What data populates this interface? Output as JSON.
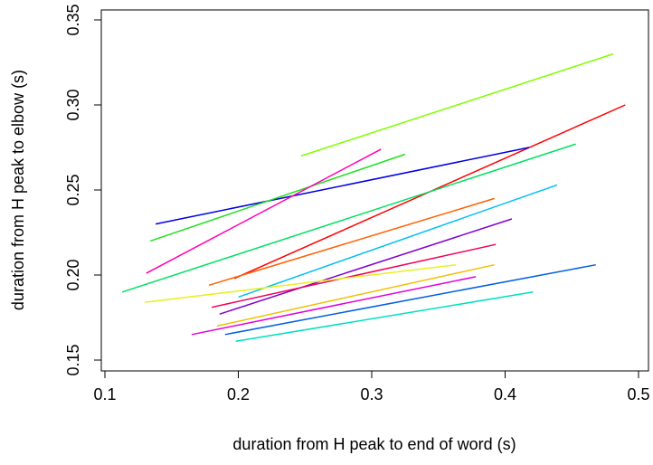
{
  "chart_data": {
    "type": "line",
    "title": "",
    "xlabel": "duration from H peak to end of word (s)",
    "ylabel": "duration from H peak to elbow (s)",
    "xlim": [
      0.1,
      0.5
    ],
    "ylim": [
      0.15,
      0.35
    ],
    "xticks": [
      0.1,
      0.2,
      0.3,
      0.4,
      0.5
    ],
    "xtick_labels": [
      "0.1",
      "0.2",
      "0.3",
      "0.4",
      "0.5"
    ],
    "yticks": [
      0.15,
      0.2,
      0.25,
      0.3,
      0.35
    ],
    "ytick_labels": [
      "0.15",
      "0.20",
      "0.25",
      "0.30",
      "0.35"
    ],
    "grid": false,
    "legend": "none",
    "series": [
      {
        "color": "#80ff00",
        "x": [
          0.247,
          0.481
        ],
        "y": [
          0.27,
          0.33
        ]
      },
      {
        "color": "#ff0000",
        "x": [
          0.197,
          0.49
        ],
        "y": [
          0.198,
          0.3
        ]
      },
      {
        "color": "#0000e0",
        "x": [
          0.138,
          0.418
        ],
        "y": [
          0.23,
          0.275
        ]
      },
      {
        "color": "#00e060",
        "x": [
          0.113,
          0.453
        ],
        "y": [
          0.19,
          0.277
        ]
      },
      {
        "color": "#20e020",
        "x": [
          0.134,
          0.325
        ],
        "y": [
          0.22,
          0.271
        ]
      },
      {
        "color": "#ff00b0",
        "x": [
          0.131,
          0.307
        ],
        "y": [
          0.201,
          0.274
        ]
      },
      {
        "color": "#ff6000",
        "x": [
          0.178,
          0.392
        ],
        "y": [
          0.194,
          0.245
        ]
      },
      {
        "color": "#00c0f0",
        "x": [
          0.2,
          0.439
        ],
        "y": [
          0.187,
          0.253
        ]
      },
      {
        "color": "#8000d0",
        "x": [
          0.186,
          0.405
        ],
        "y": [
          0.177,
          0.233
        ]
      },
      {
        "color": "#f0005a",
        "x": [
          0.18,
          0.393
        ],
        "y": [
          0.181,
          0.218
        ]
      },
      {
        "color": "#e8f020",
        "x": [
          0.13,
          0.363
        ],
        "y": [
          0.184,
          0.206
        ]
      },
      {
        "color": "#f0c000",
        "x": [
          0.184,
          0.392
        ],
        "y": [
          0.17,
          0.206
        ]
      },
      {
        "color": "#e000e0",
        "x": [
          0.165,
          0.378
        ],
        "y": [
          0.165,
          0.199
        ]
      },
      {
        "color": "#0060e0",
        "x": [
          0.19,
          0.468
        ],
        "y": [
          0.165,
          0.206
        ]
      },
      {
        "color": "#00e0c0",
        "x": [
          0.198,
          0.421
        ],
        "y": [
          0.161,
          0.19
        ]
      }
    ]
  }
}
